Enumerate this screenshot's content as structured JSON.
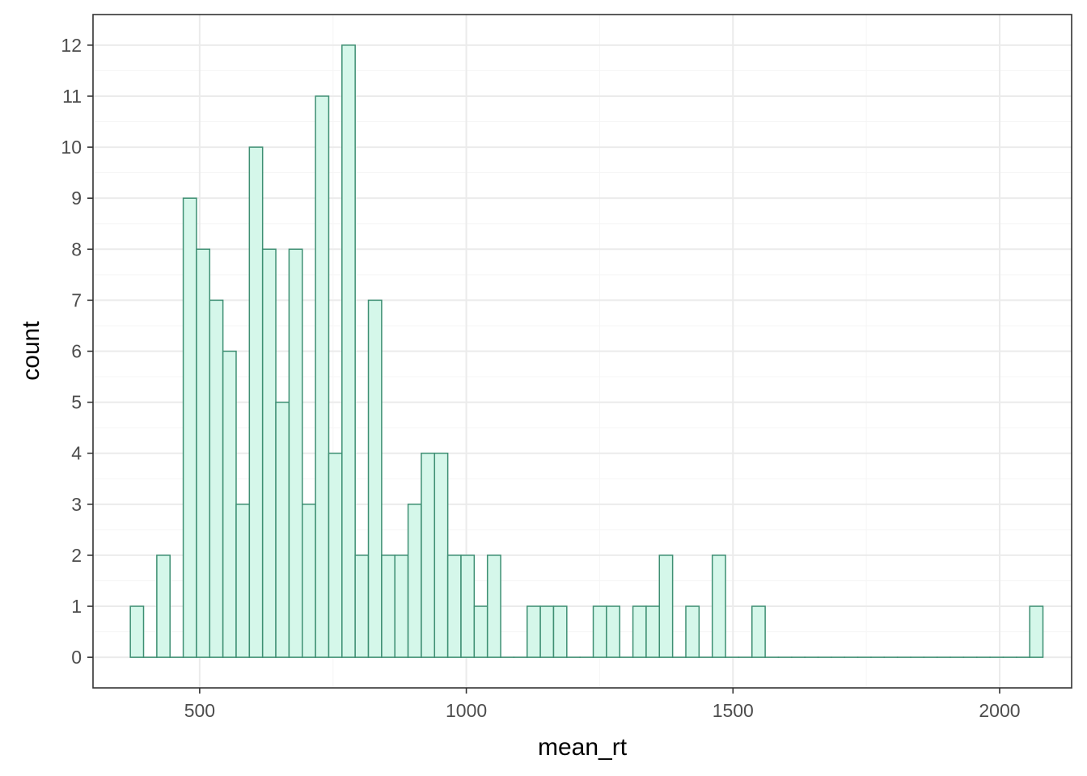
{
  "chart_data": {
    "type": "bar",
    "subtype": "histogram",
    "xlabel": "mean_rt",
    "ylabel": "count",
    "xlim": [
      300,
      2135
    ],
    "ylim": [
      -0.6,
      12.6
    ],
    "x_ticks": [
      "500",
      "1000",
      "1500",
      "2000"
    ],
    "x_tick_values": [
      500,
      1000,
      1500,
      2000
    ],
    "y_ticks": [
      "0",
      "1",
      "2",
      "3",
      "4",
      "5",
      "6",
      "7",
      "8",
      "9",
      "10",
      "11",
      "12"
    ],
    "y_tick_values": [
      0,
      1,
      2,
      3,
      4,
      5,
      6,
      7,
      8,
      9,
      10,
      11,
      12
    ],
    "bin_width": 24.8,
    "bin_start": 370,
    "values": [
      1,
      0,
      2,
      0,
      9,
      8,
      7,
      6,
      3,
      10,
      8,
      5,
      8,
      3,
      11,
      4,
      12,
      2,
      7,
      2,
      2,
      3,
      4,
      4,
      2,
      2,
      1,
      2,
      0,
      0,
      1,
      1,
      1,
      0,
      0,
      1,
      1,
      0,
      1,
      1,
      2,
      0,
      1,
      0,
      2,
      0,
      0,
      1,
      0,
      0,
      0,
      0,
      0,
      0,
      0,
      0,
      0,
      0,
      0,
      0,
      0,
      0,
      0,
      0,
      0,
      0,
      0,
      0,
      1
    ],
    "grid": true,
    "legend": "none",
    "colors": {
      "bar_fill": "#d5f7ea",
      "bar_outline": "#3e8f73",
      "panel_border": "#333333",
      "grid_major": "#ebebeb",
      "grid_minor": "#f5f5f5"
    }
  }
}
